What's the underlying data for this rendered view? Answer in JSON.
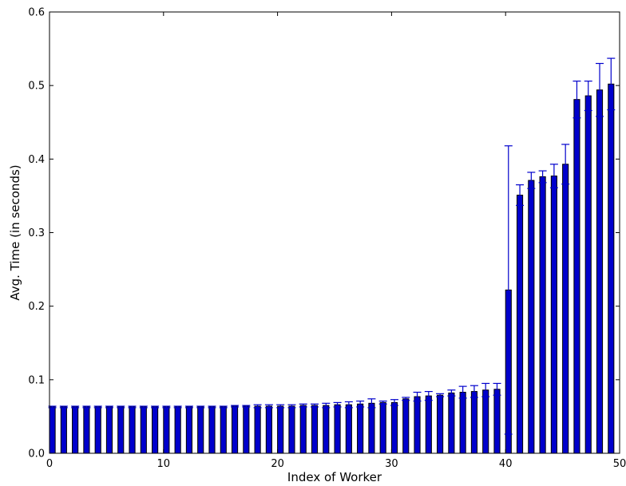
{
  "chart_data": {
    "type": "bar",
    "title": "",
    "xlabel": "Index of Worker",
    "ylabel": "Avg. Time (in seconds)",
    "xlim": [
      0,
      50
    ],
    "ylim": [
      0.0,
      0.6
    ],
    "x_ticks": [
      0,
      10,
      20,
      30,
      40,
      50
    ],
    "x_tick_labels": [
      "0",
      "10",
      "20",
      "30",
      "40",
      "50"
    ],
    "y_ticks": [
      0.0,
      0.1,
      0.2,
      0.3,
      0.4,
      0.5,
      0.6
    ],
    "y_tick_labels": [
      "0.0",
      "0.1",
      "0.2",
      "0.3",
      "0.4",
      "0.5",
      "0.6"
    ],
    "grid": false,
    "legend": "none",
    "bar_color": "#0000cc",
    "bar_edge_color": "#000000",
    "error_color": "#0000cc",
    "x": [
      0,
      1,
      2,
      3,
      4,
      5,
      6,
      7,
      8,
      9,
      10,
      11,
      12,
      13,
      14,
      15,
      16,
      17,
      18,
      19,
      20,
      21,
      22,
      23,
      24,
      25,
      26,
      27,
      28,
      29,
      30,
      31,
      32,
      33,
      34,
      35,
      36,
      37,
      38,
      39,
      40,
      41,
      42,
      43,
      44,
      45,
      46,
      47,
      48,
      49
    ],
    "values": [
      0.063,
      0.063,
      0.063,
      0.063,
      0.063,
      0.063,
      0.063,
      0.063,
      0.063,
      0.063,
      0.063,
      0.063,
      0.063,
      0.063,
      0.063,
      0.063,
      0.064,
      0.064,
      0.064,
      0.064,
      0.064,
      0.064,
      0.065,
      0.065,
      0.065,
      0.066,
      0.066,
      0.067,
      0.068,
      0.069,
      0.069,
      0.074,
      0.077,
      0.078,
      0.079,
      0.082,
      0.083,
      0.084,
      0.086,
      0.087,
      0.222,
      0.351,
      0.371,
      0.376,
      0.377,
      0.393,
      0.481,
      0.486,
      0.494,
      0.502
    ],
    "errors": [
      0.001,
      0.001,
      0.001,
      0.001,
      0.001,
      0.001,
      0.001,
      0.001,
      0.001,
      0.001,
      0.001,
      0.001,
      0.001,
      0.001,
      0.001,
      0.001,
      0.001,
      0.001,
      0.002,
      0.002,
      0.002,
      0.002,
      0.002,
      0.002,
      0.003,
      0.003,
      0.004,
      0.004,
      0.006,
      0.002,
      0.004,
      0.002,
      0.006,
      0.006,
      0.002,
      0.004,
      0.008,
      0.008,
      0.009,
      0.008,
      0.196,
      0.014,
      0.011,
      0.008,
      0.016,
      0.027,
      0.025,
      0.02,
      0.036,
      0.035
    ]
  }
}
